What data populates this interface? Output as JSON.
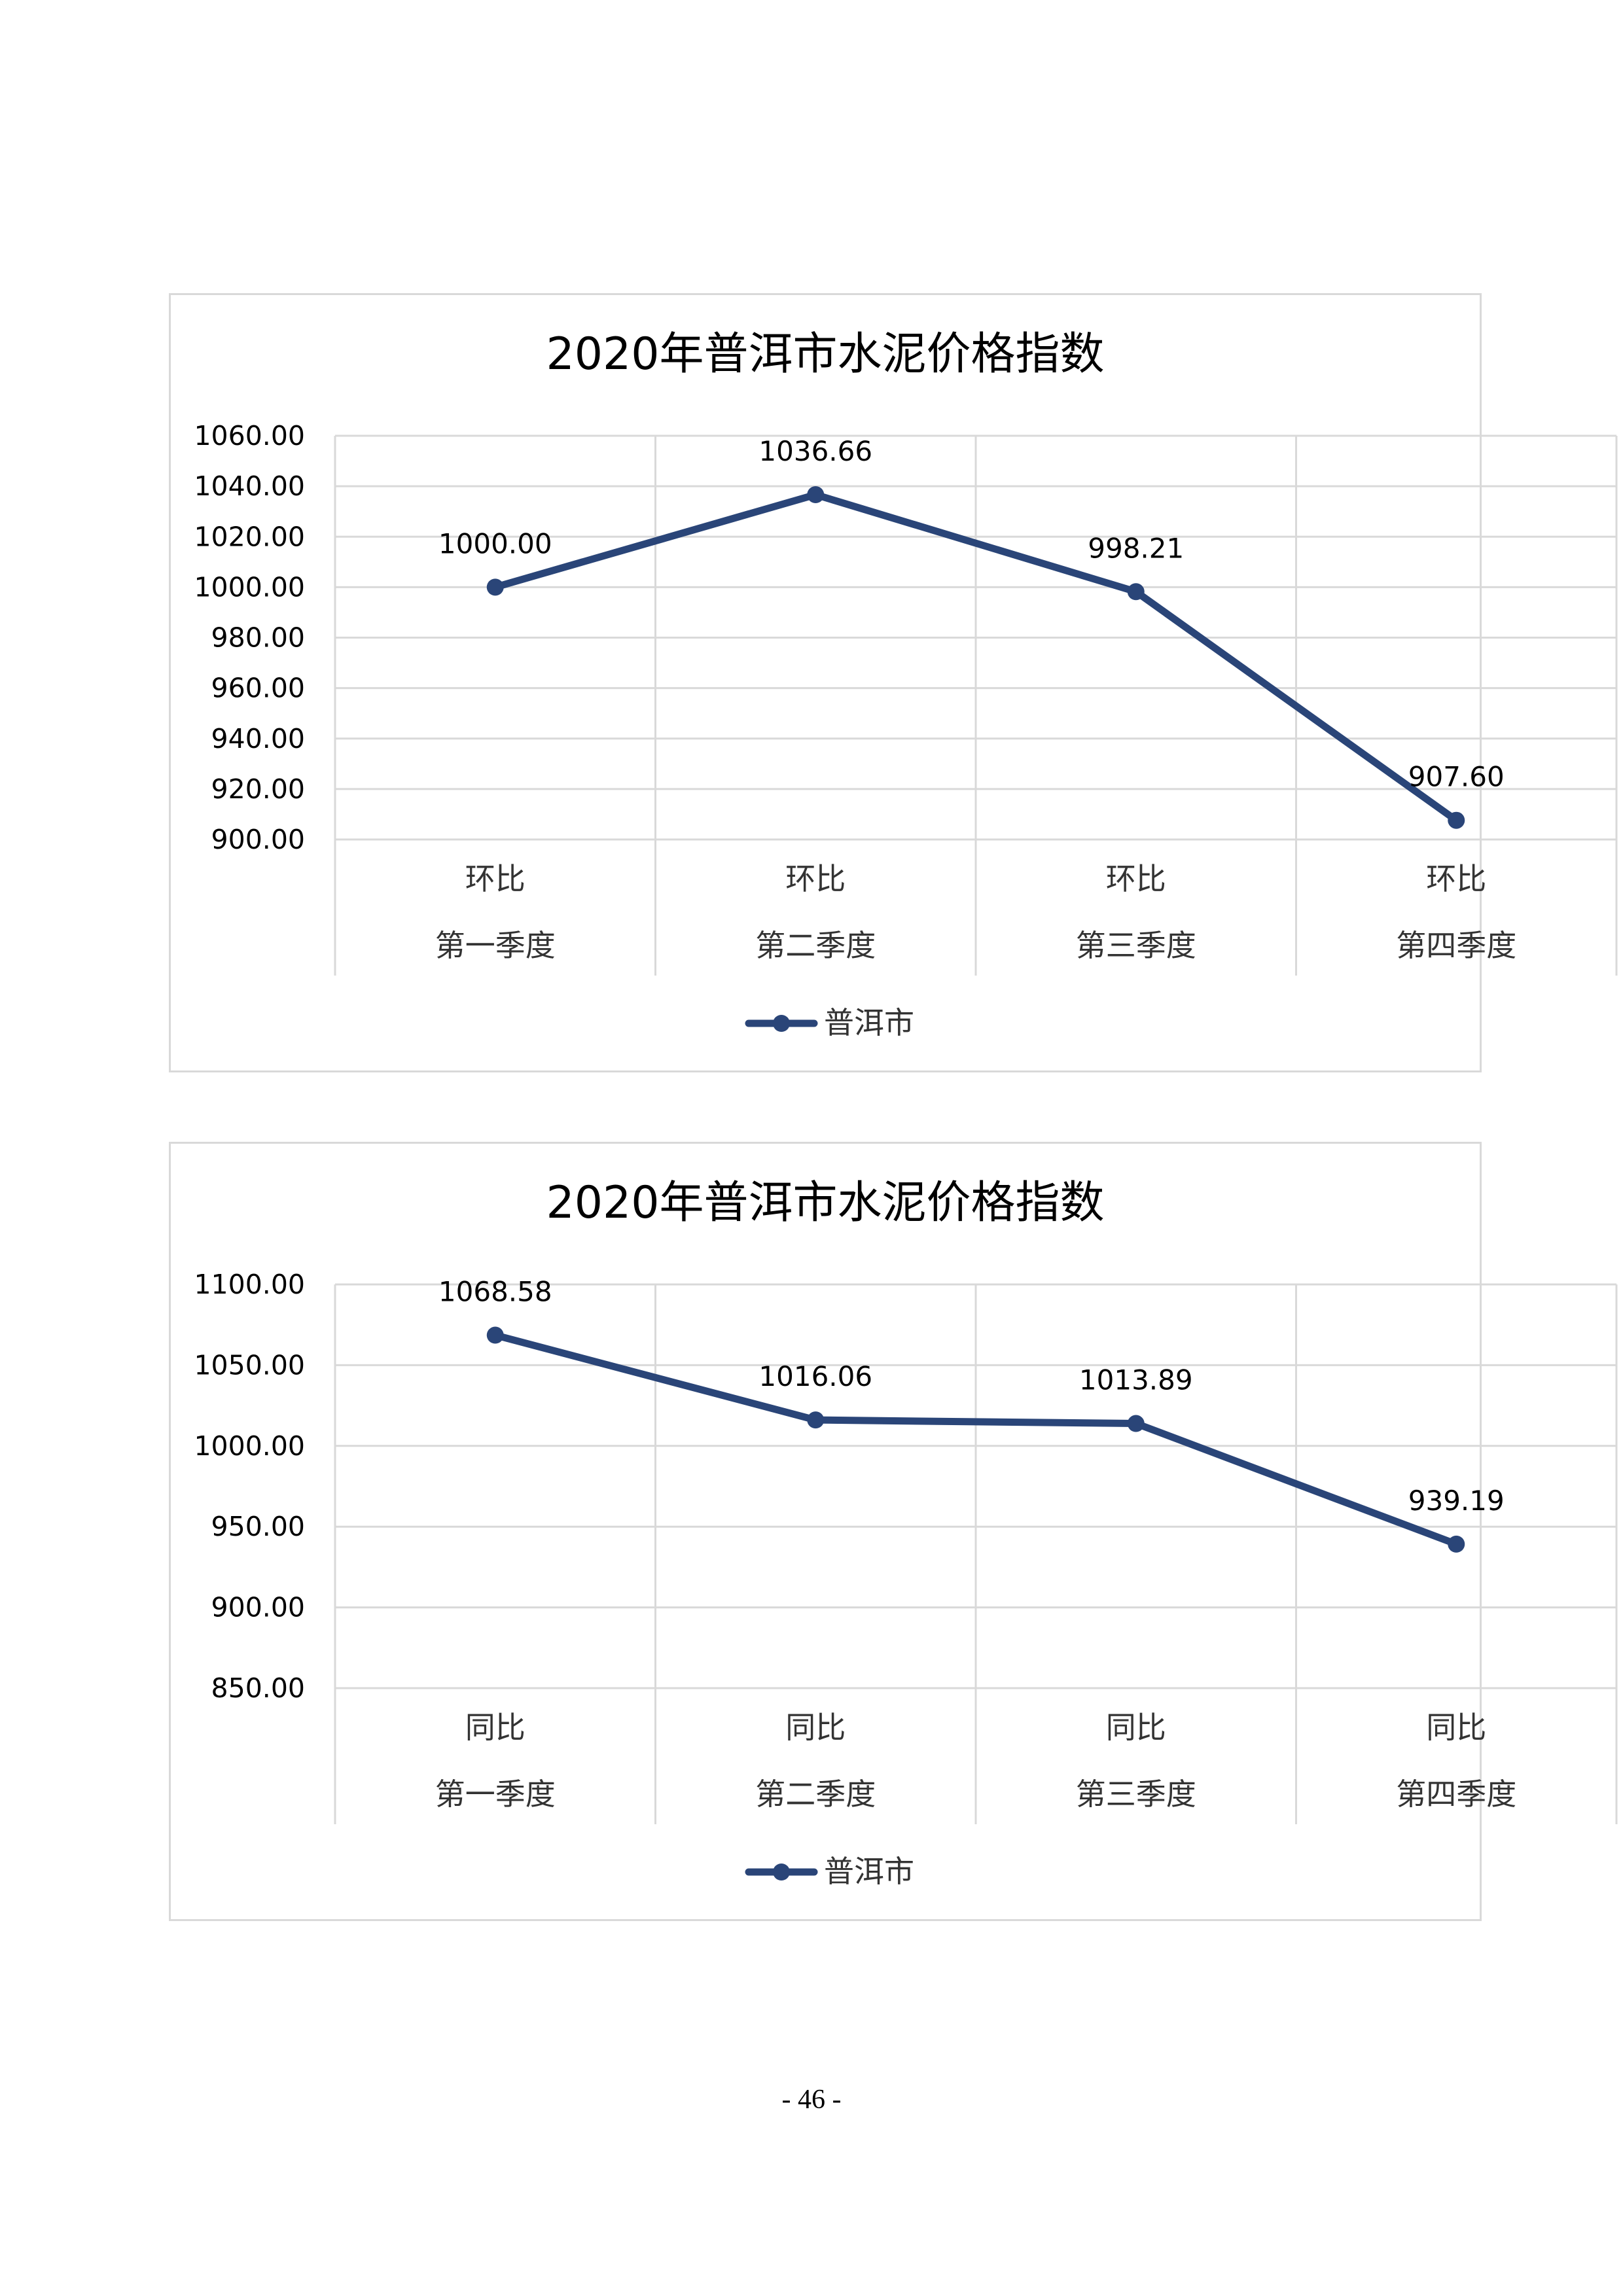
{
  "page": {
    "number": "- 46 -"
  },
  "style": {
    "series_color": "#2a4578",
    "grid_color": "#d9d9d9",
    "text_color": "#000000"
  },
  "chart_data": [
    {
      "type": "line",
      "title": "2020年普洱市水泥价格指数",
      "categories": [
        [
          "环比",
          "第一季度"
        ],
        [
          "环比",
          "第二季度"
        ],
        [
          "环比",
          "第三季度"
        ],
        [
          "环比",
          "第四季度"
        ]
      ],
      "series": [
        {
          "name": "普洱市",
          "values": [
            1000.0,
            1036.66,
            998.21,
            907.6
          ]
        }
      ],
      "data_labels": [
        "1000.00",
        "1036.66",
        "998.21",
        "907.60"
      ],
      "ylim": [
        900,
        1060
      ],
      "yticks": [
        "900.00",
        "920.00",
        "940.00",
        "960.00",
        "980.00",
        "1000.00",
        "1020.00",
        "1040.00",
        "1060.00"
      ],
      "grid": true,
      "legend": "bottom"
    },
    {
      "type": "line",
      "title": "2020年普洱市水泥价格指数",
      "categories": [
        [
          "同比",
          "第一季度"
        ],
        [
          "同比",
          "第二季度"
        ],
        [
          "同比",
          "第三季度"
        ],
        [
          "同比",
          "第四季度"
        ]
      ],
      "series": [
        {
          "name": "普洱市",
          "values": [
            1068.58,
            1016.06,
            1013.89,
            939.19
          ]
        }
      ],
      "data_labels": [
        "1068.58",
        "1016.06",
        "1013.89",
        "939.19"
      ],
      "ylim": [
        850,
        1100
      ],
      "yticks": [
        "850.00",
        "900.00",
        "950.00",
        "1000.00",
        "1050.00",
        "1100.00"
      ],
      "grid": true,
      "legend": "bottom"
    }
  ]
}
